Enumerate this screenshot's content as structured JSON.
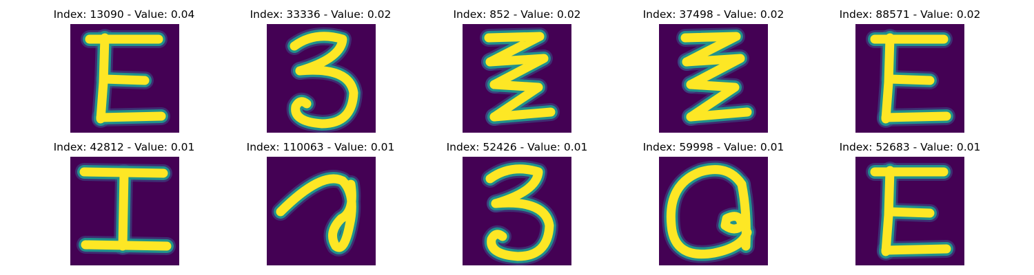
{
  "figure": {
    "panels": [
      {
        "title": "Index: 13090 - Value: 0.04",
        "glyph": "E-shape"
      },
      {
        "title": "Index: 33336 - Value: 0.02",
        "glyph": "3-shape"
      },
      {
        "title": "Index: 852 - Value: 0.02",
        "glyph": "stacked-z-shape"
      },
      {
        "title": "Index: 37498 - Value: 0.02",
        "glyph": "stacked-z-shape"
      },
      {
        "title": "Index: 88571 - Value: 0.02",
        "glyph": "E-shape"
      },
      {
        "title": "Index: 42812 - Value: 0.01",
        "glyph": "I-shape"
      },
      {
        "title": "Index: 110063 - Value: 0.01",
        "glyph": "loop-stroke"
      },
      {
        "title": "Index: 52426 - Value: 0.01",
        "glyph": "3-shape"
      },
      {
        "title": "Index: 59998 - Value: 0.01",
        "glyph": "a-loop-shape"
      },
      {
        "title": "Index: 52683 - Value: 0.01",
        "glyph": "E-shape"
      }
    ],
    "colors": {
      "background": "#440154",
      "stroke_core": "#fde725",
      "stroke_edge": "#21918c",
      "stroke_halo": "#3b528b"
    }
  }
}
